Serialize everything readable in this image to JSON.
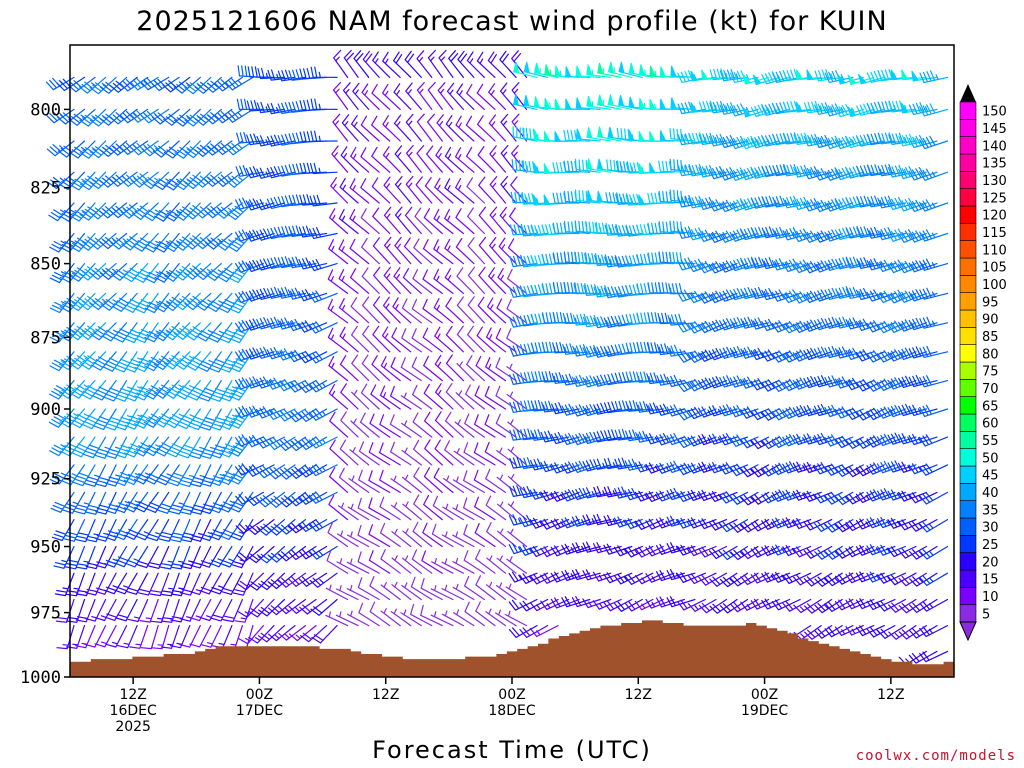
{
  "chart_data": {
    "type": "wind-barb-profile",
    "title": "2025121606 NAM forecast wind profile (kt) for KUIN",
    "xlabel": "Forecast Time (UTC)",
    "ylabel": "",
    "credit": "coolwx.com/models",
    "y_axis": {
      "ticks": [
        "800",
        "825",
        "850",
        "875",
        "900",
        "925",
        "950",
        "975",
        "1000"
      ],
      "range": [
        780,
        1000
      ],
      "scale": "log-pressure",
      "unit": "hPa"
    },
    "x_axis": {
      "labels": [
        {
          "hour": 6,
          "lines": [
            "12Z",
            "16DEC",
            "2025"
          ]
        },
        {
          "hour": 18,
          "lines": [
            "00Z",
            "17DEC"
          ]
        },
        {
          "hour": 30,
          "lines": [
            "12Z"
          ]
        },
        {
          "hour": 42,
          "lines": [
            "00Z",
            "18DEC"
          ]
        },
        {
          "hour": 54,
          "lines": [
            "12Z"
          ]
        },
        {
          "hour": 66,
          "lines": [
            "00Z",
            "19DEC"
          ]
        },
        {
          "hour": 78,
          "lines": [
            "12Z"
          ]
        }
      ],
      "range_hours": [
        0,
        84
      ],
      "step_hours": 1
    },
    "colorbar": {
      "unit": "kt",
      "levels": [
        5,
        10,
        15,
        20,
        25,
        30,
        35,
        40,
        45,
        50,
        55,
        60,
        65,
        70,
        75,
        80,
        85,
        90,
        95,
        100,
        105,
        110,
        115,
        120,
        125,
        130,
        135,
        140,
        145,
        150
      ],
      "colors": [
        "#8a2be2",
        "#7a00ff",
        "#4b00ff",
        "#2a00ff",
        "#0038ff",
        "#0060ff",
        "#0080ff",
        "#00a8ff",
        "#00d0ff",
        "#00ffd8",
        "#00ffa0",
        "#00ff60",
        "#00ff00",
        "#60ff00",
        "#a8ff00",
        "#ffff00",
        "#ffe000",
        "#ffc000",
        "#ffa000",
        "#ff8800",
        "#ff7000",
        "#ff5000",
        "#ff3000",
        "#ff0000",
        "#ff0040",
        "#ff0070",
        "#ff00a0",
        "#ff00c8",
        "#ff00e8",
        "#ff00ff"
      ]
    },
    "terrain": {
      "color": "#a0522d",
      "surface_pressure_hpa_by_hour": [
        994,
        994,
        993,
        993,
        993,
        993,
        992,
        992,
        992,
        991,
        991,
        991,
        990,
        989,
        988,
        988,
        988,
        988,
        988,
        988,
        988,
        988,
        988,
        988,
        989,
        989,
        989,
        990,
        991,
        991,
        992,
        992,
        993,
        993,
        993,
        993,
        993,
        993,
        992,
        992,
        992,
        991,
        990,
        989,
        988,
        987,
        985,
        984,
        983,
        982,
        981,
        980,
        980,
        979,
        979,
        978,
        978,
        979,
        979,
        980,
        980,
        980,
        980,
        980,
        980,
        979,
        980,
        981,
        982,
        983,
        985,
        986,
        987,
        988,
        989,
        990,
        991,
        992,
        993,
        994,
        994,
        995,
        995,
        995,
        994
      ]
    },
    "wind_regimes": [
      {
        "start_hour": 0,
        "end_hour": 17,
        "dir_low": 200,
        "dir_high": 235,
        "spd_low": 10,
        "spd_mid": 42,
        "spd_high": 32,
        "peak_hpa": 900
      },
      {
        "start_hour": 18,
        "end_hour": 25,
        "dir_low": 225,
        "dir_high": 270,
        "spd_low": 14,
        "spd_mid": 34,
        "spd_high": 28,
        "peak_hpa": 910
      },
      {
        "start_hour": 26,
        "end_hour": 43,
        "dir_low": 300,
        "dir_high": 320,
        "spd_low": 6,
        "spd_mid": 14,
        "spd_high": 22,
        "peak_hpa": 800
      },
      {
        "start_hour": 44,
        "end_hour": 59,
        "dir_low": 245,
        "dir_high": 280,
        "spd_low": 16,
        "spd_mid": 46,
        "spd_high": 54,
        "peak_hpa": 830
      },
      {
        "start_hour": 60,
        "end_hour": 84,
        "dir_low": 240,
        "dir_high": 260,
        "spd_low": 18,
        "spd_mid": 40,
        "spd_high": 50,
        "peak_hpa": 820
      }
    ]
  }
}
